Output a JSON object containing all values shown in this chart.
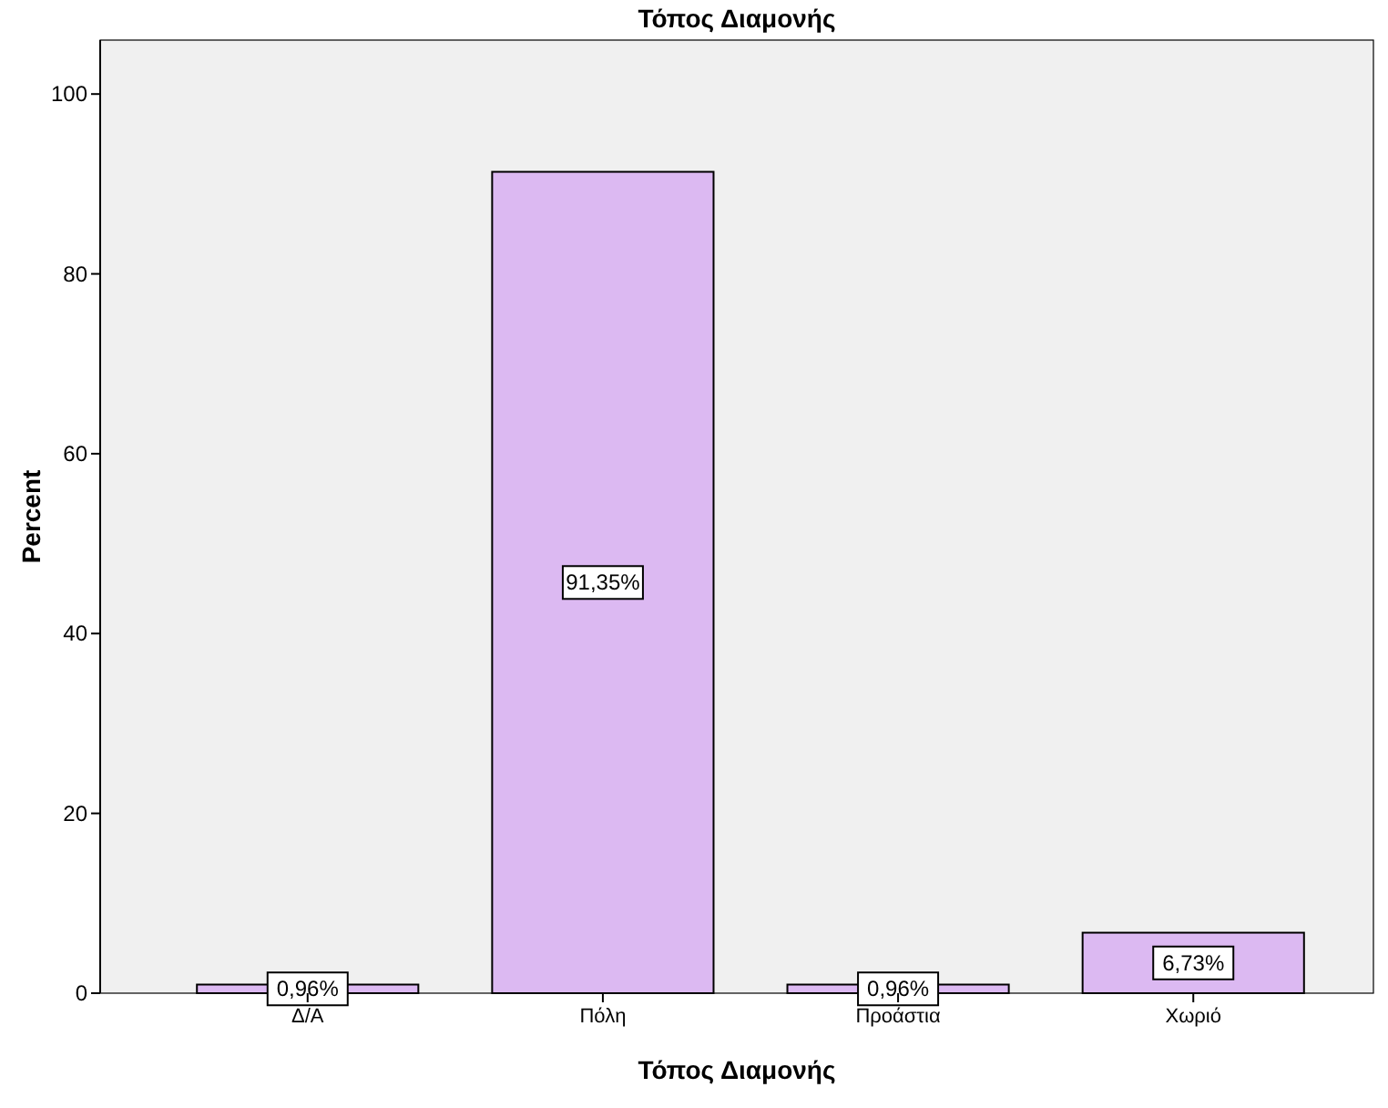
{
  "chart_data": {
    "type": "bar",
    "title": "Τόπος Διαμονής",
    "xlabel": "Τόπος Διαμονής",
    "ylabel": "Percent",
    "categories": [
      "Δ/Α",
      "Πόλη",
      "Προάστια",
      "Χωριό"
    ],
    "values": [
      0.96,
      91.35,
      0.96,
      6.73
    ],
    "value_labels": [
      "0,96%",
      "91,35%",
      "0,96%",
      "6,73%"
    ],
    "color": "#dcb9f2",
    "ylim": [
      0,
      106
    ],
    "yticks": [
      0,
      20,
      40,
      60,
      80,
      100
    ],
    "grid": false
  }
}
